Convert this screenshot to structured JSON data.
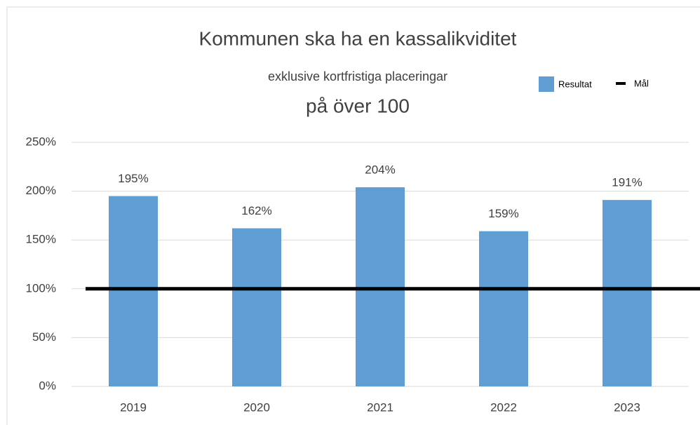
{
  "chart_data": {
    "type": "bar",
    "title_lines": [
      "Kommunen ska ha en kassalikviditet",
      "exklusive kortfristiga placeringar",
      "på över 100"
    ],
    "categories": [
      "2019",
      "2020",
      "2021",
      "2022",
      "2023"
    ],
    "series": [
      {
        "name": "Resultat",
        "type": "bar",
        "color": "#5f9dd3",
        "values": [
          195,
          162,
          204,
          159,
          191
        ],
        "value_labels": [
          "195%",
          "162%",
          "204%",
          "159%",
          "191%"
        ]
      },
      {
        "name": "Mål",
        "type": "line",
        "color": "#000000",
        "values": [
          100,
          100,
          100,
          100,
          100
        ]
      }
    ],
    "ylim": [
      0,
      250
    ],
    "yticks": [
      {
        "value": 0,
        "label": "0%"
      },
      {
        "value": 50,
        "label": "50%"
      },
      {
        "value": 100,
        "label": "100%"
      },
      {
        "value": 150,
        "label": "150%"
      },
      {
        "value": 200,
        "label": "200%"
      },
      {
        "value": 250,
        "label": "250%"
      }
    ],
    "grid": true,
    "legend": "top-right"
  }
}
